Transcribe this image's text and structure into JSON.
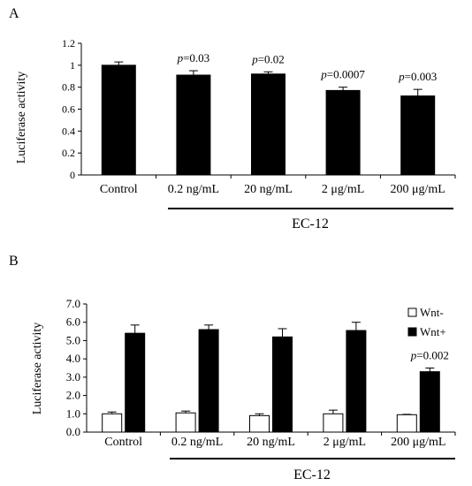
{
  "panels": [
    {
      "letter": "A",
      "ylabel": "Luciferase activity",
      "group_label": "EC-12",
      "chart_data": {
        "type": "bar",
        "categories": [
          "Control",
          "0.2 ng/mL",
          "20 ng/mL",
          "2 μg/mL",
          "200 μg/mL"
        ],
        "series": [
          {
            "values": [
              1.0,
              0.91,
              0.92,
              0.77,
              0.72
            ],
            "errors": [
              0.03,
              0.04,
              0.02,
              0.03,
              0.06
            ],
            "color": "#000000"
          }
        ],
        "annotations": [
          {
            "category": 1,
            "p": "p",
            "text": "=0.03"
          },
          {
            "category": 2,
            "p": "p",
            "text": "=0.02"
          },
          {
            "category": 3,
            "p": "p",
            "text": "=0.0007"
          },
          {
            "category": 4,
            "p": "p",
            "text": "=0.003"
          }
        ],
        "ylim": [
          0,
          1.2
        ],
        "yticks": [
          "0",
          "0.2",
          "0.4",
          "0.6",
          "0.8",
          "1",
          "1.2"
        ],
        "grid": false
      }
    },
    {
      "letter": "B",
      "ylabel": "Luciferase activity",
      "group_label": "EC-12",
      "chart_data": {
        "type": "bar",
        "categories": [
          "Control",
          "0.2 ng/mL",
          "20 ng/mL",
          "2 μg/mL",
          "200 μg/mL"
        ],
        "series": [
          {
            "name": "Wnt-",
            "values": [
              1.0,
              1.05,
              0.9,
              1.0,
              0.95
            ],
            "errors": [
              0.1,
              0.1,
              0.1,
              0.2,
              0.02
            ],
            "color": "#ffffff"
          },
          {
            "name": "Wnt+",
            "values": [
              5.4,
              5.6,
              5.2,
              5.55,
              3.3
            ],
            "errors": [
              0.45,
              0.25,
              0.45,
              0.45,
              0.2
            ],
            "color": "#000000"
          }
        ],
        "annotations": [
          {
            "category": 4,
            "series": 1,
            "p": "p",
            "text": "=0.002"
          }
        ],
        "ylim": [
          0,
          7
        ],
        "yticks": [
          "0.0",
          "1.0",
          "2.0",
          "3.0",
          "4.0",
          "5.0",
          "6.0",
          "7.0"
        ],
        "legend": "top-right",
        "grid": false
      }
    }
  ]
}
